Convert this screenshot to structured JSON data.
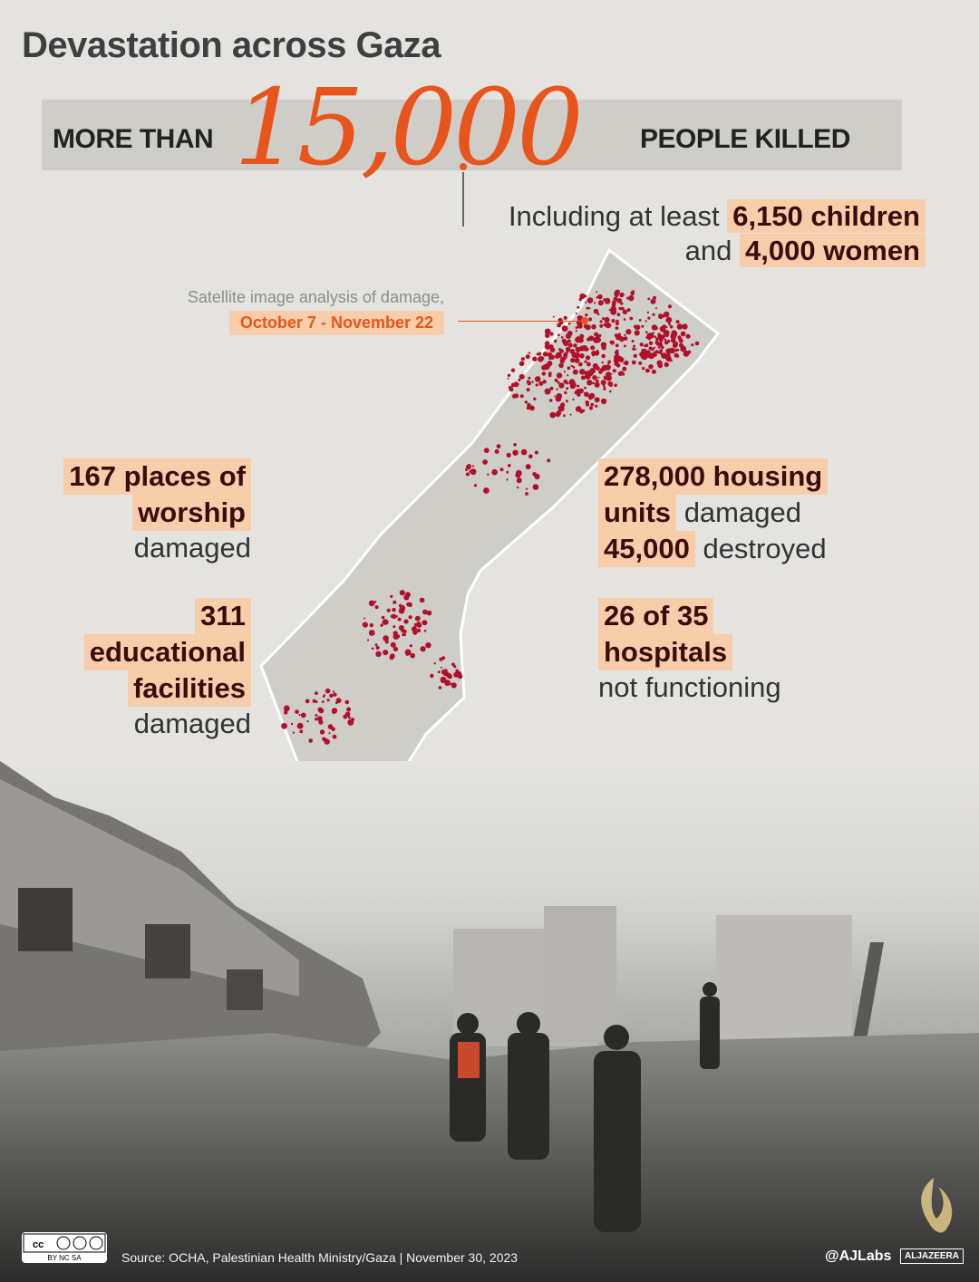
{
  "title": "Devastation across Gaza",
  "killed": {
    "prefix": "MORE THAN",
    "number": "15,000",
    "suffix": "PEOPLE KILLED"
  },
  "including": {
    "line1_text": "Including at least",
    "line1_highlight": "6,150 children",
    "line2_text": "and",
    "line2_highlight": "4,000 women"
  },
  "satellite": {
    "caption": "Satellite image analysis of damage,",
    "dates": "October 7 - November 22"
  },
  "stats": {
    "worship": {
      "hl1": "167 places of",
      "hl2": "worship",
      "rest": "damaged"
    },
    "education": {
      "hl1": "311",
      "hl2": "educational",
      "hl3": "facilities",
      "rest": "damaged"
    },
    "housing": {
      "hl1": "278,000 housing",
      "hl2": "units",
      "rest2": "damaged",
      "hl3": "45,000",
      "rest3": "destroyed"
    },
    "hospitals": {
      "hl1": "26 of 35",
      "hl2": "hospitals",
      "rest": "not functioning"
    }
  },
  "footer": {
    "license": "BY NC SA",
    "source": "Source: OCHA, Palestinian Health Ministry/Gaza  |  November 30, 2023",
    "handle": "@AJLabs",
    "brand": "ALJAZEERA"
  },
  "colors": {
    "accent": "#e8551c",
    "highlight": "#f8cdaa",
    "damage": "#b0102a",
    "background": "#e4e3e0"
  }
}
